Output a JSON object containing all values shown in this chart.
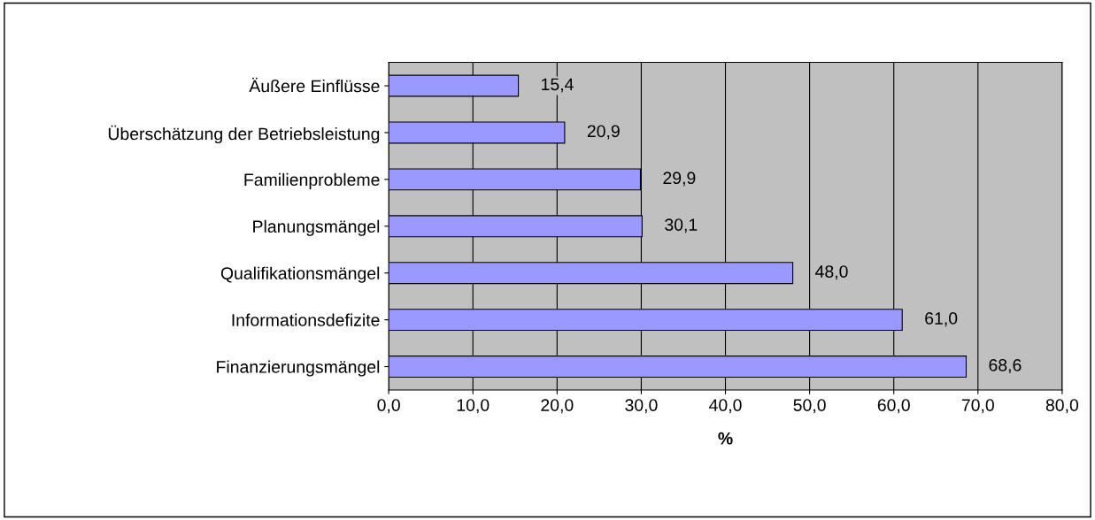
{
  "chart_data": {
    "type": "bar",
    "orientation": "horizontal",
    "categories": [
      "Äußere Einflüsse",
      "Überschätzung der Betriebsleistung",
      "Familienprobleme",
      "Planungsmängel",
      "Qualifikationsmängel",
      "Informationsdefizite",
      "Finanzierungsmängel"
    ],
    "values": [
      15.4,
      20.9,
      29.9,
      30.1,
      48.0,
      61.0,
      68.6
    ],
    "value_labels": [
      "15,4",
      "20,9",
      "29,9",
      "30,1",
      "48,0",
      "61,0",
      "68,6"
    ],
    "color": "#9999ff",
    "xlabel": "%",
    "xlim": [
      0,
      80
    ],
    "xticks": [
      {
        "value": 0,
        "label": "0,0"
      },
      {
        "value": 10,
        "label": "10,0"
      },
      {
        "value": 20,
        "label": "20,0"
      },
      {
        "value": 30,
        "label": "30,0"
      },
      {
        "value": 40,
        "label": "40,0"
      },
      {
        "value": 50,
        "label": "50,0"
      },
      {
        "value": 60,
        "label": "60,0"
      },
      {
        "value": 70,
        "label": "70,0"
      },
      {
        "value": 80,
        "label": "80,0"
      }
    ],
    "grid": "x"
  }
}
